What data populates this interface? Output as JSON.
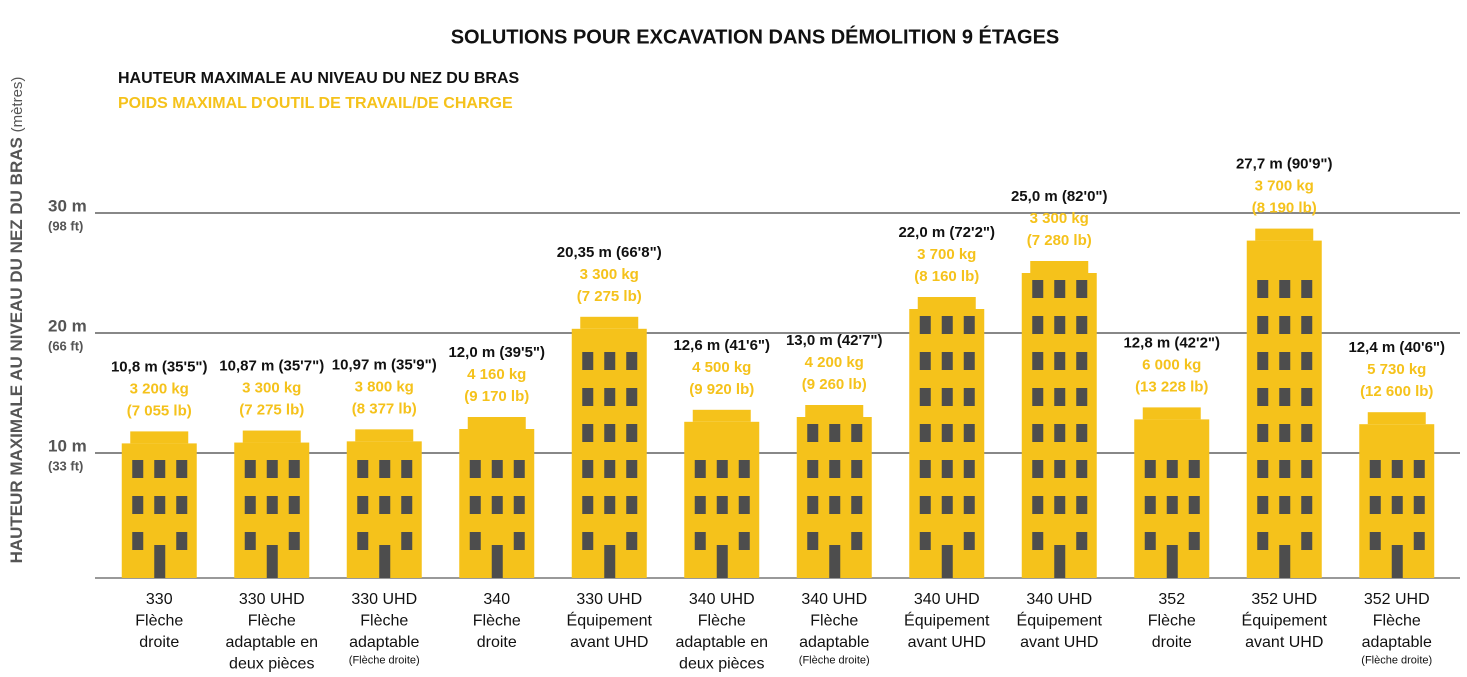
{
  "chart_data": {
    "type": "bar",
    "title": "SOLUTIONS POUR EXCAVATION DANS DÉMOLITION 9 ÉTAGES",
    "ylabel": "HAUTEUR MAXIMALE AU NIVEAU DU NEZ DU BRAS",
    "ylabel_unit": "(mètres)",
    "categories": [
      [
        "330",
        "Flèche",
        "droite"
      ],
      [
        "330 UHD",
        "Flèche",
        "adaptable en",
        "deux pièces"
      ],
      [
        "330 UHD",
        "Flèche",
        "adaptable"
      ],
      [
        "340",
        "Flèche",
        "droite"
      ],
      [
        "330 UHD",
        "Équipement",
        "avant UHD"
      ],
      [
        "340 UHD",
        "Flèche",
        "adaptable en",
        "deux pièces"
      ],
      [
        "340 UHD",
        "Flèche",
        "adaptable"
      ],
      [
        "340 UHD",
        "Équipement",
        "avant UHD"
      ],
      [
        "340 UHD",
        "Équipement",
        "avant UHD"
      ],
      [
        "352",
        "Flèche",
        "droite"
      ],
      [
        "352 UHD",
        "Équipement",
        "avant UHD"
      ],
      [
        "352 UHD",
        "Flèche",
        "adaptable"
      ]
    ],
    "category_notes": [
      null,
      null,
      "(Flèche droite)",
      null,
      null,
      null,
      "(Flèche droite)",
      null,
      null,
      null,
      null,
      "(Flèche droite)"
    ],
    "series": [
      {
        "name": "HAUTEUR MAXIMALE AU NIVEAU DU NEZ DU BRAS",
        "color": "#111111",
        "values": [
          10.8,
          10.87,
          10.97,
          12.0,
          20.35,
          12.6,
          13.0,
          22.0,
          25.0,
          12.8,
          27.7,
          12.4
        ],
        "value_labels": [
          "10,8 m (35'5\")",
          "10,87 m (35'7\")",
          "10,97 m (35'9\")",
          "12,0 m (39'5\")",
          "20,35 m (66'8\")",
          "12,6 m (41'6\")",
          "13,0 m (42'7\")",
          "22,0 m (72'2\")",
          "25,0 m (82'0\")",
          "12,8 m (42'2\")",
          "27,7 m (90'9\")",
          "12,4 m (40'6\")"
        ]
      },
      {
        "name": "POIDS MAXIMAL D'OUTIL DE TRAVAIL/DE CHARGE",
        "color": "#f5c21b",
        "values": [
          3200,
          3300,
          3800,
          4160,
          3300,
          4500,
          4200,
          3700,
          3300,
          6000,
          3700,
          5730
        ],
        "value_labels": [
          "3 200 kg",
          "3 300 kg",
          "3 800 kg",
          "4 160 kg",
          "3 300 kg",
          "4 500 kg",
          "4 200 kg",
          "3 700 kg",
          "3 300 kg",
          "6 000 kg",
          "3 700 kg",
          "5 730 kg"
        ],
        "value_labels_lb": [
          "(7 055 lb)",
          "(7 275 lb)",
          "(8 377 lb)",
          "(9 170 lb)",
          "(7 275 lb)",
          "(9 920 lb)",
          "(9 260 lb)",
          "(8 160 lb)",
          "(7 280 lb)",
          "(13 228 lb)",
          "(8 190 lb)",
          "(12 600 lb)"
        ]
      }
    ],
    "bar_color": "#f5c21b",
    "window_color": "#4d4d4d",
    "ylim": [
      0,
      33
    ],
    "yticks": [
      {
        "value": 10,
        "label": "10 m"
      },
      {
        "value": 20,
        "label": "20 m"
      },
      {
        "value": 30,
        "label": "30 m"
      }
    ],
    "ytick_sublabels": [
      "(33 ft)",
      "(66 ft)",
      "(98 ft)"
    ],
    "grid": true
  }
}
